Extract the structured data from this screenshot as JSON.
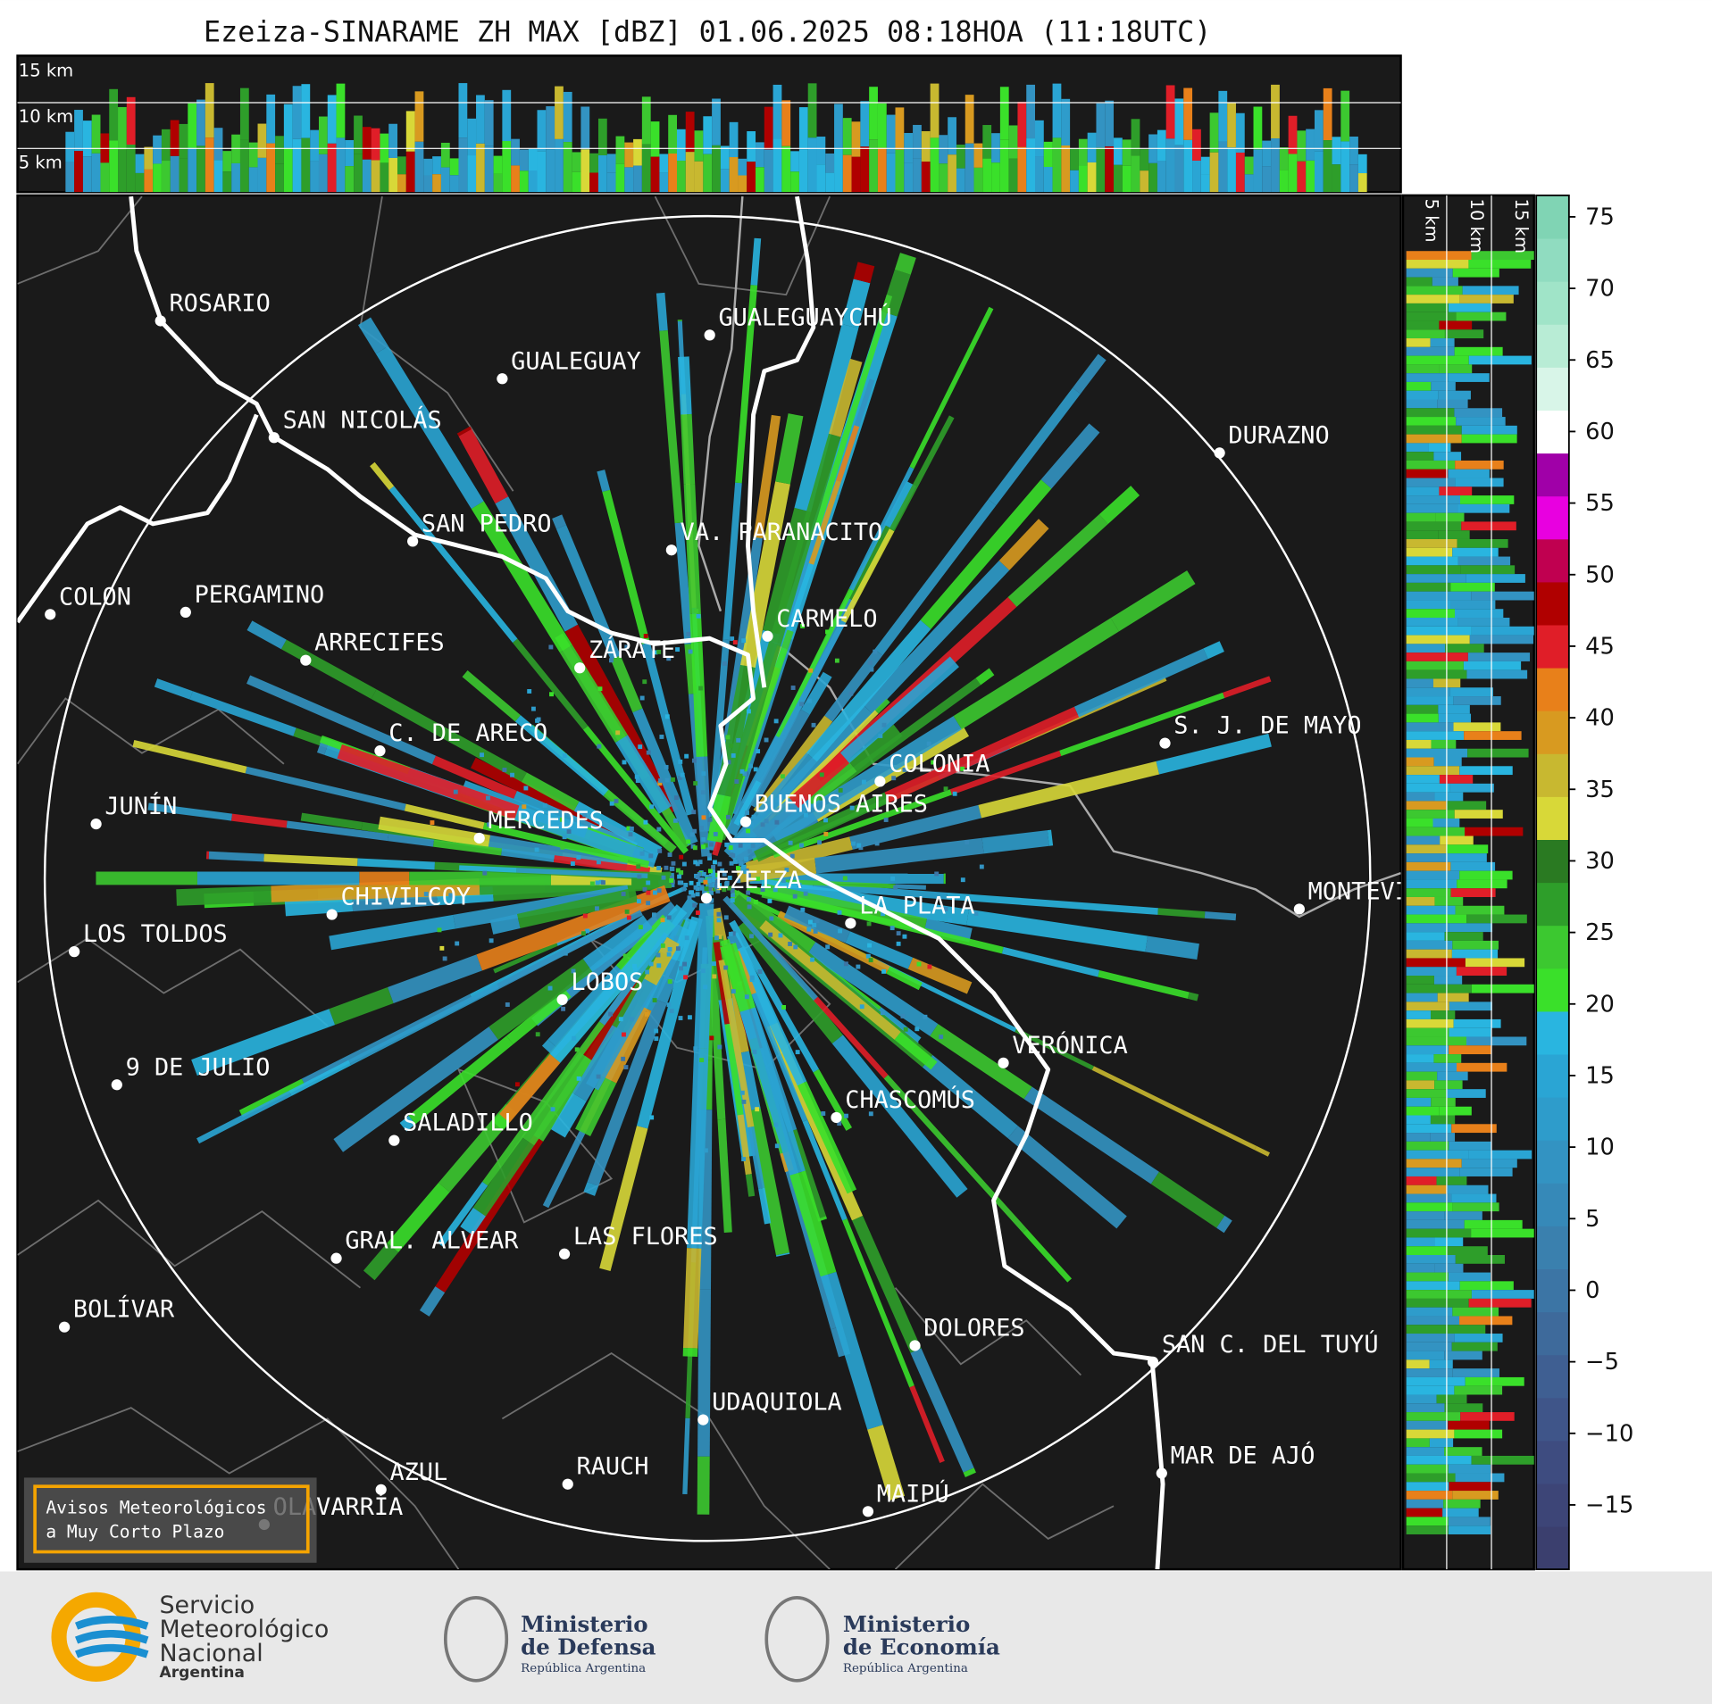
{
  "title": "Ezeiza-SINARAME ZH MAX [dBZ] 01.06.2025 08:18HOA (11:18UTC)",
  "height_panels": {
    "top_labels": [
      "15 km",
      "10 km",
      "5 km"
    ],
    "side_labels": [
      "5 km",
      "10 km",
      "15 km"
    ]
  },
  "cities": [
    "ROSARIO",
    "GUALEGUAYCHÚ",
    "GUALEGUAY",
    "SAN NICOLÁS",
    "DURAZNO",
    "SAN PEDRO",
    "VA. PARANACITO",
    "COLON",
    "PERGAMINO",
    "CARMELO",
    "ARRECIFES",
    "ZÁRATE",
    "S. J. DE MAYO",
    "C. DE ARECO",
    "COLONIA",
    "JUNÍN",
    "BUENOS AIRES",
    "MERCEDES",
    "EZEIZA",
    "MONTEVIDEO",
    "CHIVILCOY",
    "LA PLATA",
    "LOS TOLDOS",
    "LOBOS",
    "VERÓNICA",
    "9 DE JULIO",
    "CHASCOMÚS",
    "SALADILLO",
    "GRAL. ALVEAR",
    "LAS FLORES",
    "BOLÍVAR",
    "DOLORES",
    "SAN C. DEL TUYÚ",
    "UDAQUIOLA",
    "MAR DE AJÓ",
    "AZUL",
    "RAUCH",
    "OLAVARRÍA",
    "MAIPÚ"
  ],
  "colorbar": {
    "clim": [
      -19.5,
      76.5
    ],
    "ticks": [
      {
        "value": -15,
        "label": "−15"
      },
      {
        "value": -10,
        "label": "−10"
      },
      {
        "value": -5,
        "label": "−5"
      },
      0,
      5,
      10,
      15,
      20,
      25,
      30,
      35,
      40,
      45,
      50,
      55,
      60,
      65,
      70,
      75
    ],
    "colors": [
      "#3b3f6e",
      "#3d4577",
      "#3e4c80",
      "#3f5589",
      "#3f5f92",
      "#3e6a9b",
      "#3c75a5",
      "#3a80ae",
      "#3689b8",
      "#3393c2",
      "#2e9ccb",
      "#2aa5d4",
      "#29b5e0",
      "#3ae02a",
      "#3cc830",
      "#2e9e2a",
      "#2a7a22",
      "#d8d838",
      "#c8b830",
      "#d89a20",
      "#e8801a",
      "#e01e28",
      "#b00000",
      "#c00050",
      "#e800e0",
      "#a000a8",
      "#ffffff",
      "#d8f5e8",
      "#b8ecd5",
      "#a0e4c8",
      "#90dcc0",
      "#80d4b4"
    ]
  },
  "warning_box": {
    "lines": [
      "Avisos Meteorológicos",
      "a Muy Corto Plazo"
    ]
  },
  "logos": {
    "smn": [
      "Servicio",
      "Meteorológico",
      "Nacional",
      "Argentina"
    ],
    "defensa": [
      "Ministerio",
      "de Defensa",
      "República Argentina"
    ],
    "economia": [
      "Ministerio",
      "de Economía",
      "República Argentina"
    ]
  }
}
